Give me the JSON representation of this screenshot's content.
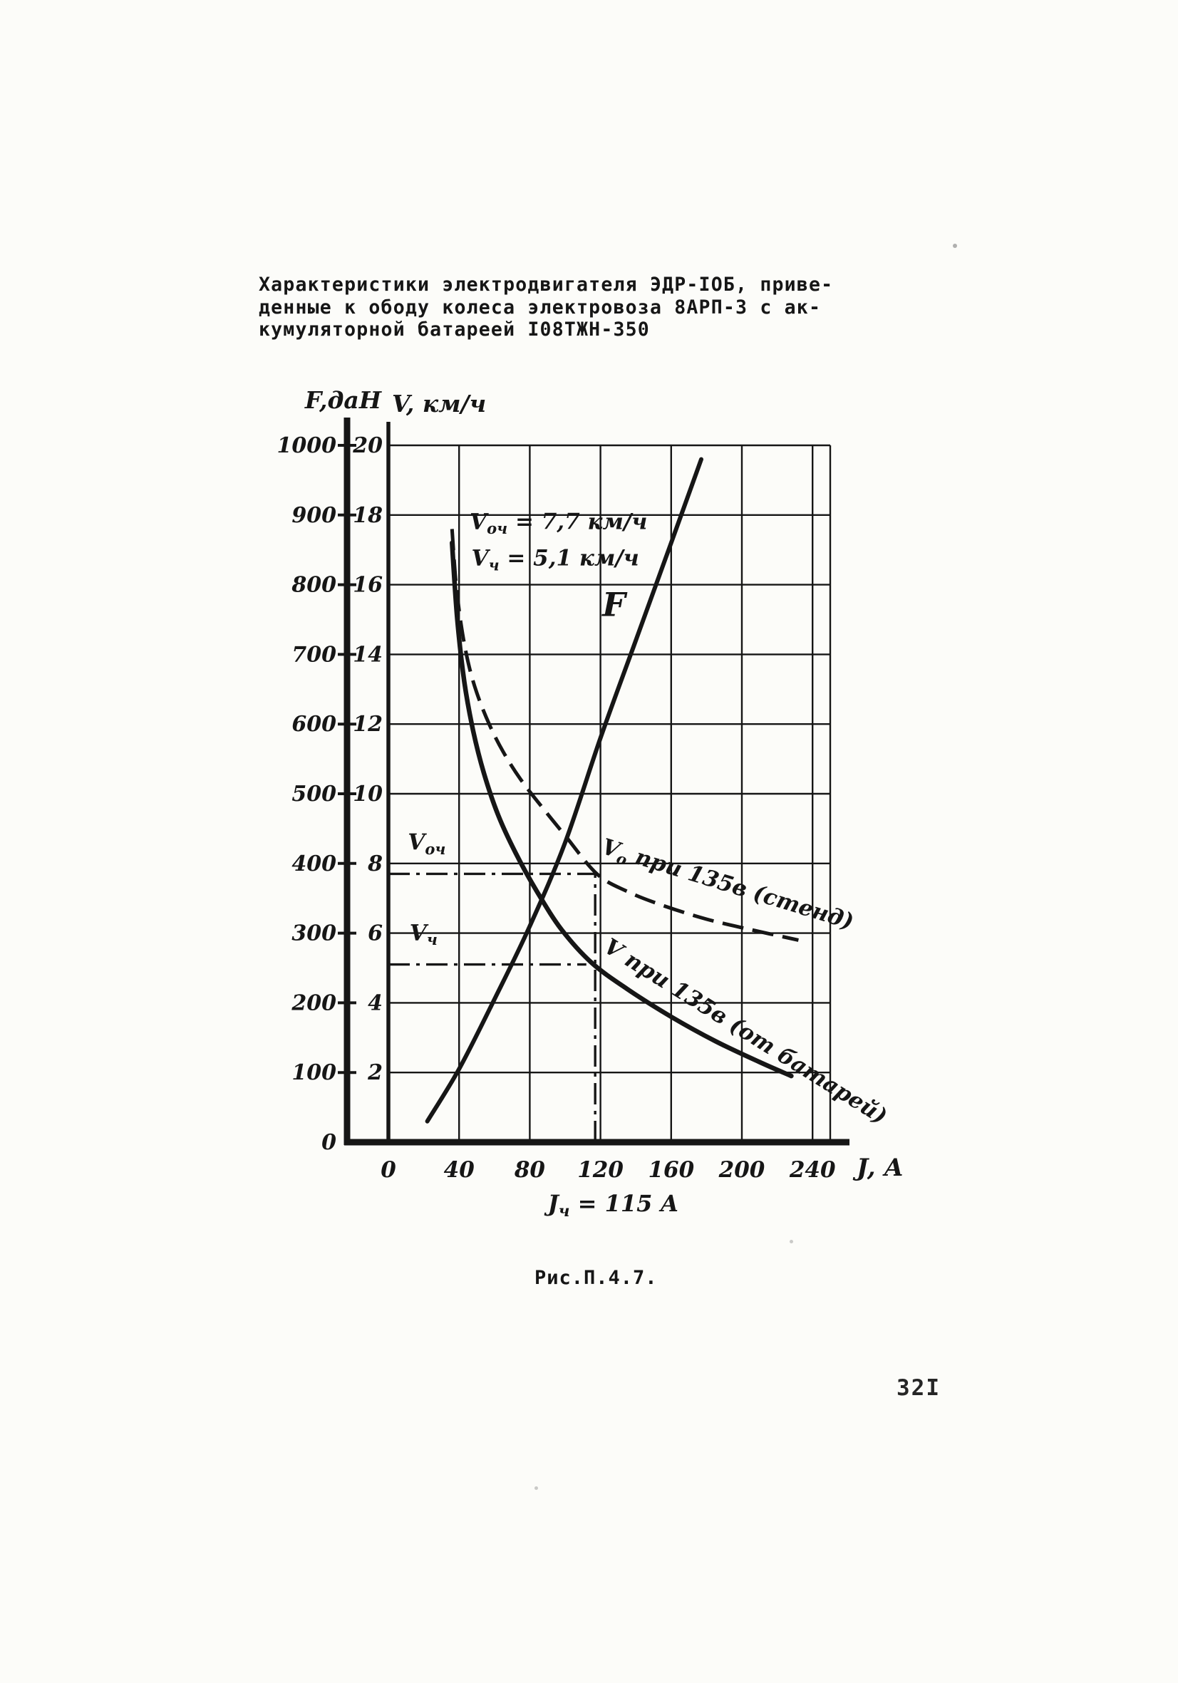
{
  "colors": {
    "ink": "#161616",
    "paper": "#fcfcf9"
  },
  "document": {
    "title_lines": [
      "Характеристики электродвигателя ЭДР-IОБ, приве-",
      "денные к ободу колеса электровоза 8АРП-3 с ак-",
      "кумуляторной батареей I08ТЖН-350"
    ],
    "caption": "Рис.П.4.7.",
    "page_number": "32I"
  },
  "chart_data": {
    "type": "line",
    "title": "Характеристики электродвигателя ЭДР-10Б, приведенные к ободу колеса электровоза 8АРП-3 с аккумуляторной батареей 108ТЖН-350",
    "grid": true,
    "x_axis": {
      "label": "J, А",
      "ticks": [
        0,
        40,
        80,
        120,
        160,
        200,
        240
      ],
      "range": [
        0,
        250
      ],
      "note_parts": [
        {
          "t": "J"
        },
        {
          "t": "ч",
          "sub": true
        },
        {
          "t": " = 115 А"
        }
      ]
    },
    "y_axis_outer": {
      "label": "F,даН",
      "ticks": [
        0,
        100,
        200,
        300,
        400,
        500,
        600,
        700,
        800,
        900,
        1000
      ],
      "range": [
        0,
        1050
      ]
    },
    "y_axis_inner": {
      "label": "V, км/ч",
      "ticks": [
        2,
        4,
        6,
        8,
        10,
        12,
        14,
        16,
        18,
        20
      ],
      "range": [
        0,
        21
      ]
    },
    "f_per_v": 50,
    "series": [
      {
        "name": "F",
        "label": "F",
        "style": "solid",
        "unit": "даН",
        "width": 6,
        "x": [
          22,
          40,
          60,
          80,
          100,
          120,
          140,
          160,
          177
        ],
        "f": [
          30,
          105,
          205,
          310,
          430,
          580,
          720,
          860,
          980
        ]
      },
      {
        "name": "V0-stand",
        "label": "Vо при 135в (стенд)",
        "style": "dashed",
        "unit": "км/ч",
        "width": 5,
        "x": [
          36,
          38,
          41,
          45,
          50,
          57,
          65,
          75,
          88,
          100,
          118,
          135,
          155,
          180,
          205,
          232
        ],
        "v": [
          17.6,
          16.2,
          14.9,
          13.8,
          12.9,
          12.0,
          11.2,
          10.4,
          9.55,
          8.8,
          7.7,
          7.2,
          6.8,
          6.4,
          6.1,
          5.8
        ]
      },
      {
        "name": "V-battery",
        "label": "V при 135в (от батарей)",
        "style": "solid",
        "unit": "км/ч",
        "width": 6.5,
        "x": [
          36,
          39,
          43,
          48,
          54,
          62,
          72,
          84,
          98,
          115,
          135,
          160,
          185,
          210,
          228
        ],
        "v": [
          17.2,
          15.0,
          13.2,
          11.8,
          10.6,
          9.4,
          8.3,
          7.2,
          6.1,
          5.15,
          4.4,
          3.6,
          2.9,
          2.3,
          1.9
        ]
      }
    ],
    "key_values": {
      "v_och_kmh": 7.7,
      "v_ch_kmh": 5.1,
      "j_ch_A": 115
    },
    "reference_lines": [
      {
        "name": "voch-hline",
        "v": 7.7,
        "j_from": 0,
        "j_to": 117
      },
      {
        "name": "vch-hline",
        "v": 5.1,
        "j_from": 0,
        "j_to": 112
      },
      {
        "name": "jch-vline",
        "j": 117,
        "v_from": 0,
        "v_to": 7.7
      }
    ],
    "annotations": [
      {
        "name": "voch-value",
        "parts": [
          {
            "t": "V"
          },
          {
            "t": "оч",
            "sub": true
          },
          {
            "t": " = 7,7 км/ч"
          }
        ],
        "J": 46,
        "v": 17.6,
        "size": 31
      },
      {
        "name": "vch-value",
        "parts": [
          {
            "t": "V"
          },
          {
            "t": "ч",
            "sub": true
          },
          {
            "t": " = 5,1 км/ч"
          }
        ],
        "J": 47,
        "v": 16.55,
        "size": 31
      },
      {
        "name": "voch-axis-label",
        "parts": [
          {
            "t": "V"
          },
          {
            "t": "оч",
            "sub": true
          }
        ],
        "J": 11,
        "v": 8.4,
        "size": 31
      },
      {
        "name": "vch-axis-label",
        "parts": [
          {
            "t": "V"
          },
          {
            "t": "ч",
            "sub": true
          }
        ],
        "J": 12,
        "v": 5.8,
        "size": 31
      }
    ],
    "curve_labels": [
      {
        "name": "label-F",
        "parts": [
          {
            "t": "F"
          }
        ],
        "J": 121,
        "v": 15.1,
        "size": 46,
        "rot": 0
      },
      {
        "name": "label-stand",
        "parts": [
          {
            "t": "V"
          },
          {
            "t": "о",
            "sub": true
          },
          {
            "t": " при 135в (стенд)"
          }
        ],
        "J": 120,
        "v": 8.3,
        "size": 31,
        "rot": 17
      },
      {
        "name": "label-battery",
        "parts": [
          {
            "t": "V"
          },
          {
            "t": " при 135в (от батарей)"
          }
        ],
        "J": 121,
        "v": 5.5,
        "size": 31,
        "rot": 32
      }
    ]
  }
}
